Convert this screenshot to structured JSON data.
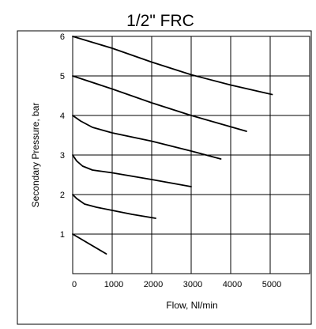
{
  "chart_data": {
    "type": "line",
    "title": "1/2\" FRC",
    "xlabel": "Flow, Nl/min",
    "ylabel": "Secondary Pressure, bar",
    "xlim": [
      0,
      6000
    ],
    "ylim": [
      0,
      6
    ],
    "x_ticks": [
      0,
      1000,
      2000,
      3000,
      4000,
      5000
    ],
    "x_tick_labels": [
      "0",
      "1000",
      "2000",
      "3000",
      "4000",
      "5000"
    ],
    "y_ticks": [
      1,
      2,
      3,
      4,
      5,
      6
    ],
    "y_tick_labels": [
      "1",
      "2",
      "3",
      "4",
      "5",
      "6"
    ],
    "grid": true,
    "legend": "none",
    "line_color": "#000000",
    "series": [
      {
        "x": [
          0,
          850
        ],
        "y": [
          1.0,
          0.5
        ]
      },
      {
        "x": [
          0,
          100,
          300,
          600,
          1000,
          1500,
          2100
        ],
        "y": [
          2.0,
          1.9,
          1.76,
          1.68,
          1.6,
          1.5,
          1.4
        ]
      },
      {
        "x": [
          0,
          100,
          250,
          500,
          1000,
          2000,
          3000
        ],
        "y": [
          3.0,
          2.85,
          2.72,
          2.62,
          2.55,
          2.38,
          2.2
        ]
      },
      {
        "x": [
          0,
          200,
          500,
          1000,
          2000,
          3000,
          3750
        ],
        "y": [
          4.0,
          3.86,
          3.7,
          3.56,
          3.35,
          3.1,
          2.9
        ]
      },
      {
        "x": [
          0,
          1000,
          2000,
          3000,
          4400
        ],
        "y": [
          5.0,
          4.67,
          4.32,
          4.0,
          3.6
        ]
      },
      {
        "x": [
          0,
          1000,
          2000,
          3000,
          4000,
          5050
        ],
        "y": [
          6.0,
          5.7,
          5.35,
          5.03,
          4.77,
          4.53
        ]
      }
    ]
  }
}
